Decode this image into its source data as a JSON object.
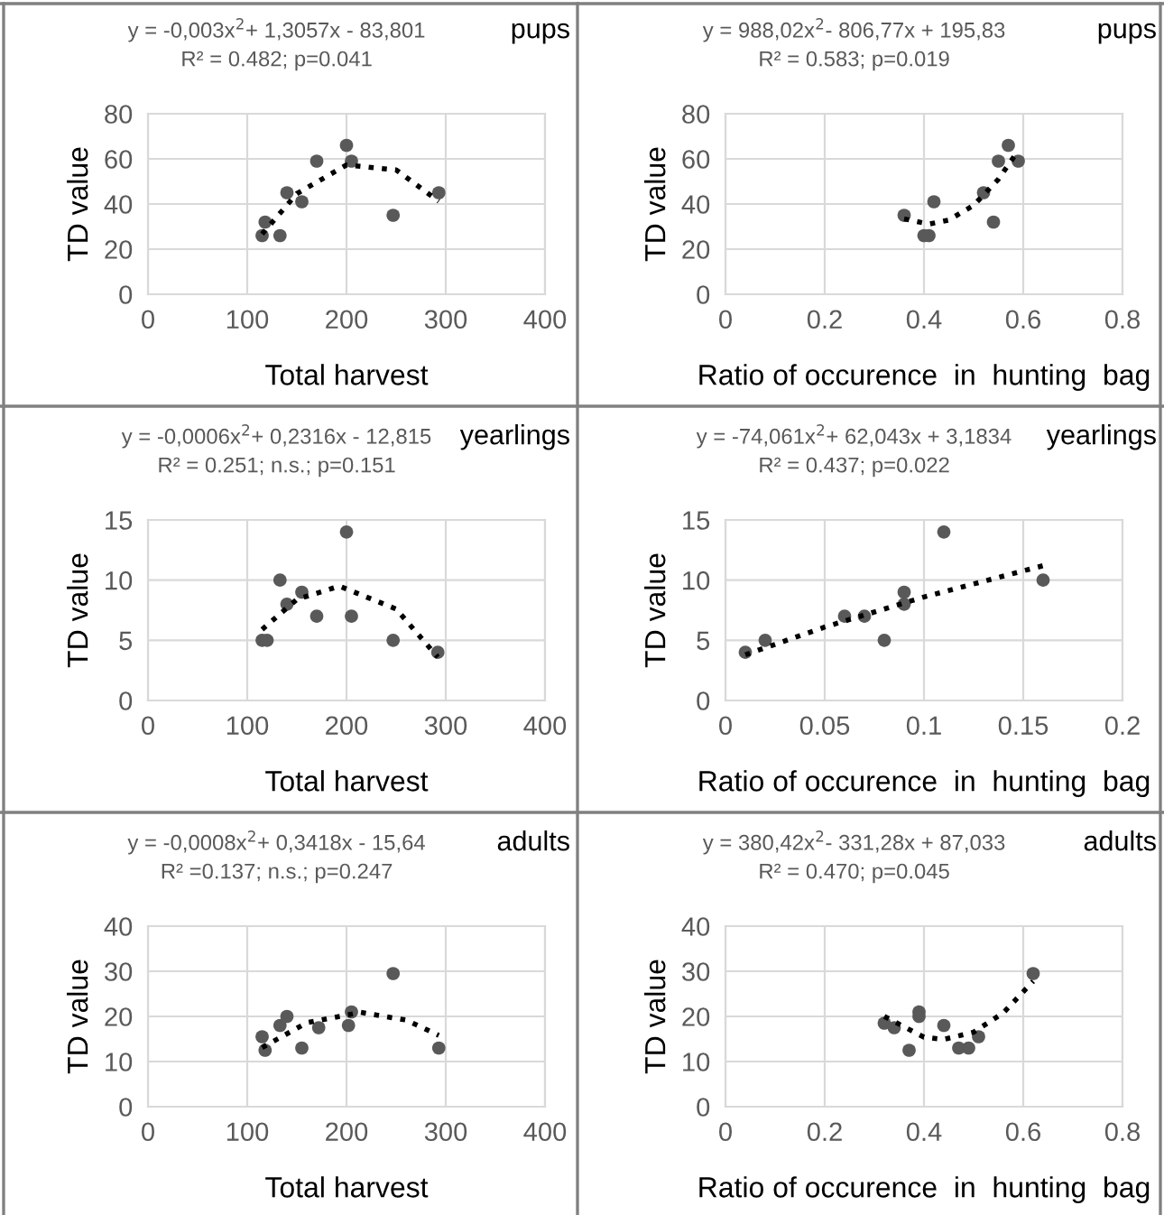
{
  "chart_data": [
    {
      "type": "scatter",
      "title": "pups",
      "subtitle": "y = -0,003x$^{2}$+ 1,3057x - 83,801",
      "annotations": [
        "R² = 0.482; p=0.041"
      ],
      "xlabel": "Total harvest",
      "ylabel": "TD value",
      "xlim": [
        0,
        400
      ],
      "xticks": [
        0,
        100,
        200,
        300,
        400
      ],
      "ylim": [
        0,
        80
      ],
      "yticks": [
        0,
        20,
        40,
        60,
        80
      ],
      "grid": true,
      "legend": false,
      "marker": "circle",
      "series": [
        {
          "color": "#595959",
          "x": [
            115,
            118,
            133,
            140,
            155,
            170,
            200,
            205,
            247,
            293
          ],
          "values": [
            26,
            32,
            26,
            45,
            41,
            59,
            66,
            59,
            35,
            45
          ]
        },
        {
          "type": "line",
          "color": "#000000",
          "line_style": "dotted",
          "marker": "none",
          "x": [
            115,
            150,
            200,
            250,
            293
          ],
          "values": [
            26.7,
            44.6,
            57.3,
            55.1,
            41.2
          ]
        }
      ]
    },
    {
      "type": "scatter",
      "title": "pups",
      "subtitle": "y = 988,02x$^{2}$- 806,77x + 195,83",
      "annotations": [
        "R² = 0.583; p=0.019"
      ],
      "xlabel": "Ratio of occurence  in  hunting  bag",
      "ylabel": "TD value",
      "xlim": [
        0,
        0.8
      ],
      "xticks": [
        0,
        0.2,
        0.4,
        0.6,
        0.8
      ],
      "ylim": [
        0,
        80
      ],
      "yticks": [
        0,
        20,
        40,
        60,
        80
      ],
      "grid": true,
      "legend": false,
      "marker": "circle",
      "series": [
        {
          "color": "#595959",
          "x": [
            0.36,
            0.4,
            0.41,
            0.42,
            0.52,
            0.54,
            0.55,
            0.57,
            0.59
          ],
          "values": [
            35,
            26,
            26,
            41,
            45,
            32,
            59,
            66,
            59
          ]
        },
        {
          "type": "line",
          "color": "#000000",
          "line_style": "dotted",
          "marker": "none",
          "x": [
            0.36,
            0.41,
            0.45,
            0.5,
            0.55,
            0.59
          ],
          "values": [
            33.4,
            31.1,
            32.9,
            39.4,
            51,
            63.7
          ]
        }
      ]
    },
    {
      "type": "scatter",
      "title": "yearlings",
      "subtitle": "y = -0,0006x$^{2}$+ 0,2316x - 12,815",
      "annotations": [
        "R² = 0.251; n.s.; p=0.151"
      ],
      "xlabel": "Total harvest",
      "ylabel": "TD value",
      "xlim": [
        0,
        400
      ],
      "xticks": [
        0,
        100,
        200,
        300,
        400
      ],
      "ylim": [
        0,
        15
      ],
      "yticks": [
        0,
        5,
        10,
        15
      ],
      "grid": true,
      "legend": false,
      "marker": "circle",
      "series": [
        {
          "color": "#595959",
          "x": [
            115,
            120,
            133,
            140,
            155,
            170,
            200,
            205,
            247,
            292
          ],
          "values": [
            5,
            5,
            10,
            8,
            9,
            7,
            14,
            7,
            5,
            4
          ]
        },
        {
          "type": "line",
          "color": "#000000",
          "line_style": "dotted",
          "marker": "none",
          "x": [
            115,
            150,
            193,
            250,
            292
          ],
          "values": [
            5.9,
            8.4,
            9.5,
            7.6,
            3.6
          ]
        }
      ]
    },
    {
      "type": "scatter",
      "title": "yearlings",
      "subtitle": "y = -74,061x$^{2}$+ 62,043x + 3,1834",
      "annotations": [
        "R² = 0.437; p=0.022"
      ],
      "xlabel": "Ratio of occurence  in  hunting  bag",
      "ylabel": "TD value",
      "xlim": [
        0,
        0.2
      ],
      "xticks": [
        0,
        0.05,
        0.1,
        0.15,
        0.2
      ],
      "ylim": [
        0,
        15
      ],
      "yticks": [
        0,
        5,
        10,
        15
      ],
      "grid": true,
      "legend": false,
      "marker": "circle",
      "series": [
        {
          "color": "#595959",
          "x": [
            0.01,
            0.02,
            0.06,
            0.07,
            0.08,
            0.09,
            0.09,
            0.11,
            0.16
          ],
          "values": [
            4,
            5,
            7,
            7,
            5,
            9,
            8,
            14,
            10
          ]
        },
        {
          "type": "line",
          "color": "#000000",
          "line_style": "dotted",
          "marker": "none",
          "x": [
            0.01,
            0.05,
            0.1,
            0.16
          ],
          "values": [
            3.8,
            6.1,
            8.6,
            11.2
          ]
        }
      ]
    },
    {
      "type": "scatter",
      "title": "adults",
      "subtitle": "y = -0,0008x$^{2}$+ 0,3418x - 15,64",
      "annotations": [
        "R² =0.137; n.s.; p=0.247"
      ],
      "xlabel": "Total harvest",
      "ylabel": "TD value",
      "xlim": [
        0,
        400
      ],
      "xticks": [
        0,
        100,
        200,
        300,
        400
      ],
      "ylim": [
        0,
        40
      ],
      "yticks": [
        0,
        10,
        20,
        30,
        40
      ],
      "grid": true,
      "legend": false,
      "marker": "circle",
      "series": [
        {
          "color": "#595959",
          "x": [
            115,
            118,
            133,
            140,
            155,
            172,
            202,
            205,
            247,
            293
          ],
          "values": [
            15.5,
            12.5,
            18,
            20,
            13,
            17.5,
            18,
            21,
            29.5,
            13
          ]
        },
        {
          "type": "line",
          "color": "#000000",
          "line_style": "dotted",
          "marker": "none",
          "x": [
            115,
            160,
            214,
            260,
            293
          ],
          "values": [
            13.1,
            18.6,
            20.9,
            19.2,
            15.8
          ]
        }
      ]
    },
    {
      "type": "scatter",
      "title": "adults",
      "subtitle": "y = 380,42x$^{2}$- 331,28x + 87,033",
      "annotations": [
        "R² = 0.470; p=0.045"
      ],
      "xlabel": "Ratio of occurence  in  hunting  bag",
      "ylabel": "TD value",
      "xlim": [
        0,
        0.8
      ],
      "xticks": [
        0,
        0.2,
        0.4,
        0.6,
        0.8
      ],
      "ylim": [
        0,
        40
      ],
      "yticks": [
        0,
        10,
        20,
        30,
        40
      ],
      "grid": true,
      "legend": false,
      "marker": "circle",
      "series": [
        {
          "color": "#595959",
          "x": [
            0.32,
            0.34,
            0.37,
            0.39,
            0.39,
            0.44,
            0.47,
            0.49,
            0.51,
            0.62
          ],
          "values": [
            18.5,
            17.5,
            12.5,
            21,
            20,
            18,
            13,
            13,
            15.5,
            29.5
          ]
        },
        {
          "type": "line",
          "color": "#000000",
          "line_style": "dotted",
          "marker": "none",
          "x": [
            0.32,
            0.4,
            0.44,
            0.5,
            0.56,
            0.62
          ],
          "values": [
            20.0,
            15.4,
            14.9,
            16.5,
            20.8,
            27.8
          ]
        }
      ]
    }
  ]
}
